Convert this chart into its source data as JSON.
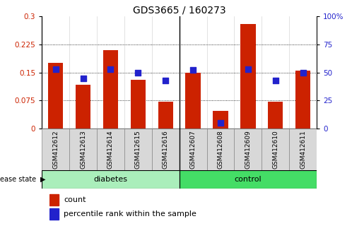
{
  "title": "GDS3665 / 160273",
  "samples": [
    "GSM412612",
    "GSM412613",
    "GSM412614",
    "GSM412615",
    "GSM412616",
    "GSM412607",
    "GSM412608",
    "GSM412609",
    "GSM412610",
    "GSM412611"
  ],
  "count_values": [
    0.175,
    0.118,
    0.21,
    0.13,
    0.073,
    0.15,
    0.048,
    0.28,
    0.073,
    0.155
  ],
  "percentile_values": [
    53,
    45,
    53,
    50,
    43,
    52,
    5,
    53,
    43,
    50
  ],
  "disease_groups": [
    {
      "label": "diabetes",
      "start": 0,
      "end": 5,
      "color": "#aaeebb"
    },
    {
      "label": "control",
      "start": 5,
      "end": 10,
      "color": "#44dd66"
    }
  ],
  "ylim_left": [
    0,
    0.3
  ],
  "ylim_right": [
    0,
    100
  ],
  "yticks_left": [
    0,
    0.075,
    0.15,
    0.225,
    0.3
  ],
  "ytick_labels_left": [
    "0",
    "0.075",
    "0.15",
    "0.225",
    "0.3"
  ],
  "yticks_right": [
    0,
    25,
    50,
    75,
    100
  ],
  "ytick_labels_right": [
    "0",
    "25",
    "50",
    "75",
    "100%"
  ],
  "bar_color": "#cc2200",
  "dot_color": "#2222cc",
  "bar_width": 0.55,
  "dot_size": 28,
  "tick_label_color_left": "#cc2200",
  "tick_label_color_right": "#2222cc",
  "legend_count_label": "count",
  "legend_percentile_label": "percentile rank within the sample",
  "disease_state_label": "disease state",
  "title_fontsize": 10,
  "axis_fontsize": 7.5,
  "label_fontsize": 6.5,
  "legend_fontsize": 8
}
